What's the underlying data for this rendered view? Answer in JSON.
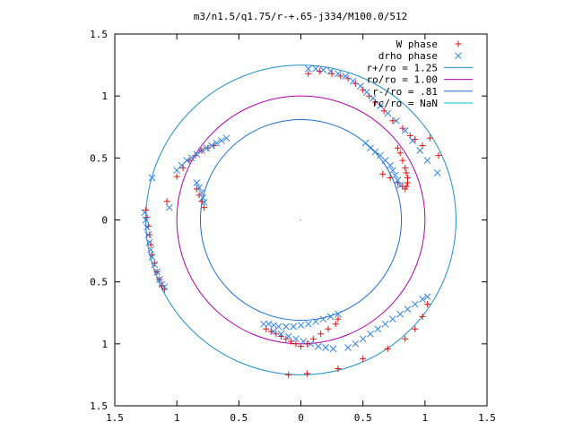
{
  "chart_data": {
    "type": "scatter",
    "title": "m3/n1.5/q1.75/r-+.65-j334/M100.0/512",
    "xlim": [
      -1.5,
      1.5
    ],
    "ylim": [
      -1.5,
      1.5
    ],
    "x_ticks": [
      -1.5,
      -1,
      -0.5,
      0,
      0.5,
      1,
      1.5
    ],
    "x_tick_labels": [
      "1.5",
      "1",
      "0.5",
      "0",
      "0.5",
      "1",
      "1.5"
    ],
    "y_ticks": [
      1.5,
      1,
      0.5,
      0,
      -0.5,
      -1,
      -1.5
    ],
    "y_tick_labels": [
      "1.5",
      "1",
      "0.5",
      "0",
      "0.5",
      "1",
      "1.5"
    ],
    "legend_position": "top-right",
    "circles": [
      {
        "name": "r+/ro = 1.25",
        "radius": 1.25,
        "color": "#1f8fc8"
      },
      {
        "name": "ro/ro = 1.00",
        "radius": 1.0,
        "color": "#b000b0"
      },
      {
        "name": "r-/ro = .81",
        "radius": 0.81,
        "color": "#1f70d0"
      },
      {
        "name": "rc/ro = NaN",
        "radius": null,
        "color": "#00c0d0"
      }
    ],
    "series": [
      {
        "name": "W phase",
        "marker": "plus",
        "color": "#e01010",
        "x": [
          0.06,
          0.15,
          0.25,
          0.32,
          0.38,
          0.44,
          0.5,
          0.55,
          0.6,
          0.67,
          0.74,
          0.82,
          0.88,
          0.92,
          0.98,
          1.04,
          1.11,
          -1.25,
          -1.24,
          -1.23,
          -1.22,
          -1.21,
          -1.2,
          -1.18,
          -1.16,
          -1.14,
          -1.12,
          -1.1,
          -1.08,
          -1.0,
          -0.95,
          -0.9,
          -0.85,
          -0.8,
          -0.75,
          -0.7,
          -0.84,
          -0.82,
          -0.8,
          -0.78,
          0.78,
          0.8,
          0.82,
          0.84,
          0.85,
          0.86,
          0.86,
          0.85,
          0.84,
          0.82,
          0.78,
          0.72,
          0.66,
          -0.28,
          -0.24,
          -0.2,
          -0.16,
          -0.12,
          -0.08,
          -0.04,
          0.0,
          0.05,
          0.1,
          0.16,
          0.22,
          0.28,
          0.3,
          -0.1,
          0.05,
          0.3,
          0.5,
          0.7,
          0.84,
          0.92,
          0.98,
          1.02
        ],
        "y": [
          1.18,
          1.2,
          1.18,
          1.16,
          1.14,
          1.1,
          1.05,
          1.0,
          0.95,
          0.88,
          0.8,
          0.74,
          0.68,
          0.65,
          0.6,
          0.66,
          0.52,
          0.08,
          0.02,
          -0.05,
          -0.12,
          -0.2,
          -0.28,
          -0.35,
          -0.42,
          -0.48,
          -0.53,
          -0.56,
          0.15,
          0.35,
          0.42,
          0.48,
          0.52,
          0.56,
          0.58,
          0.6,
          0.25,
          0.2,
          0.15,
          0.1,
          0.58,
          0.54,
          0.48,
          0.42,
          0.38,
          0.34,
          0.3,
          0.27,
          0.25,
          0.27,
          0.3,
          0.34,
          0.37,
          -0.88,
          -0.9,
          -0.92,
          -0.94,
          -0.96,
          -0.98,
          -1.0,
          -1.02,
          -1.0,
          -0.96,
          -0.92,
          -0.88,
          -0.84,
          -0.8,
          -1.25,
          -1.24,
          -1.2,
          -1.12,
          -1.04,
          -0.96,
          -0.88,
          -0.78,
          -0.68
        ]
      },
      {
        "name": "drho phase",
        "marker": "cross",
        "color": "#2f84e8",
        "x": [
          0.06,
          0.12,
          0.18,
          0.24,
          0.3,
          0.36,
          0.42,
          0.48,
          0.53,
          0.58,
          0.64,
          0.7,
          0.77,
          0.84,
          0.9,
          0.96,
          1.02,
          1.1,
          -1.26,
          -1.25,
          -1.24,
          -1.23,
          -1.22,
          -1.21,
          -1.2,
          -1.18,
          -1.16,
          -1.14,
          -1.12,
          -1.1,
          -1.2,
          -1.06,
          -1.0,
          -0.96,
          -0.92,
          -0.88,
          -0.84,
          -0.8,
          -0.76,
          -0.72,
          -0.68,
          -0.64,
          -0.6,
          -0.84,
          -0.82,
          -0.8,
          -0.79,
          -0.78,
          0.52,
          0.56,
          0.6,
          0.64,
          0.68,
          0.72,
          0.74,
          0.76,
          0.78,
          0.8,
          -0.3,
          -0.26,
          -0.22,
          -0.18,
          -0.12,
          -0.06,
          0.0,
          0.06,
          0.12,
          0.18,
          0.24,
          0.3,
          -0.22,
          -0.16,
          -0.1,
          -0.04,
          0.02,
          0.08,
          0.14,
          0.2,
          0.26,
          0.38,
          0.44,
          0.5,
          0.56,
          0.62,
          0.68,
          0.74,
          0.8,
          0.86,
          0.92,
          0.98,
          1.02
        ],
        "y": [
          1.22,
          1.22,
          1.21,
          1.2,
          1.18,
          1.16,
          1.12,
          1.08,
          1.03,
          0.98,
          0.92,
          0.86,
          0.8,
          0.72,
          0.64,
          0.56,
          0.48,
          0.38,
          0.06,
          0.0,
          -0.06,
          -0.12,
          -0.18,
          -0.24,
          -0.3,
          -0.36,
          -0.42,
          -0.48,
          -0.52,
          -0.54,
          0.34,
          0.1,
          0.4,
          0.44,
          0.48,
          0.5,
          0.53,
          0.56,
          0.58,
          0.6,
          0.62,
          0.64,
          0.66,
          0.3,
          0.26,
          0.22,
          0.18,
          0.14,
          0.62,
          0.58,
          0.55,
          0.52,
          0.48,
          0.44,
          0.4,
          0.36,
          0.32,
          0.28,
          -0.84,
          -0.84,
          -0.85,
          -0.86,
          -0.86,
          -0.86,
          -0.85,
          -0.84,
          -0.82,
          -0.8,
          -0.78,
          -0.76,
          -0.9,
          -0.92,
          -0.94,
          -0.96,
          -0.98,
          -1.0,
          -1.02,
          -1.03,
          -1.04,
          -1.03,
          -1.0,
          -0.96,
          -0.92,
          -0.88,
          -0.84,
          -0.8,
          -0.76,
          -0.72,
          -0.68,
          -0.64,
          -0.62
        ]
      }
    ]
  }
}
